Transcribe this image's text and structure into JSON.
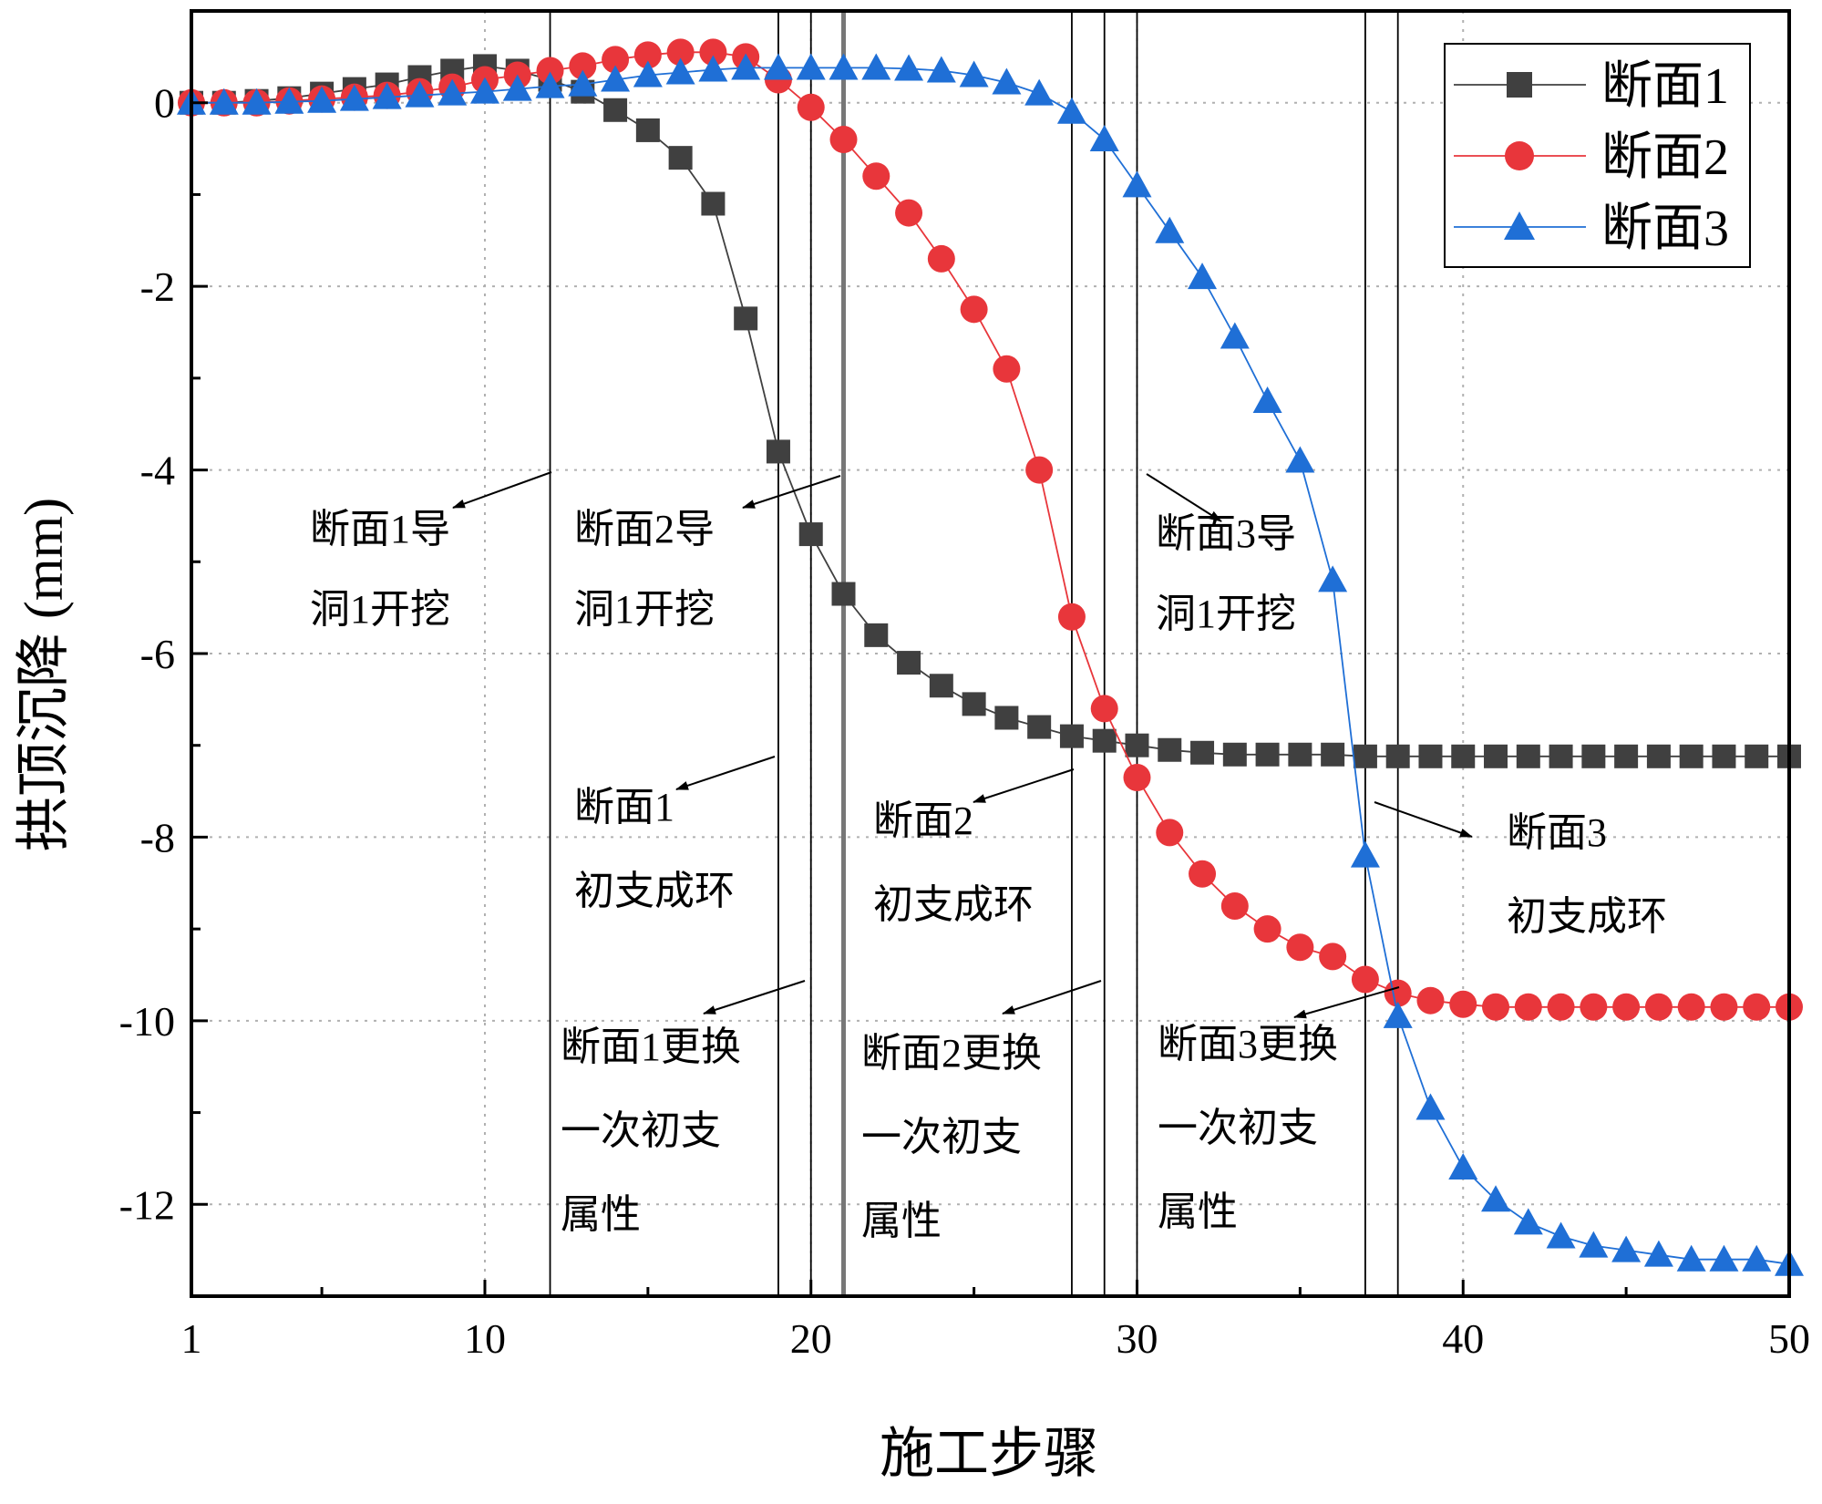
{
  "chart_data": {
    "type": "line",
    "xlabel": "施工步骤",
    "ylabel": "拱顶沉降 (mm)",
    "xlim": [
      1,
      50
    ],
    "ylim": [
      -13,
      1
    ],
    "xticks": [
      1,
      10,
      20,
      30,
      40,
      50
    ],
    "yticks": [
      0,
      -2,
      -4,
      -6,
      -8,
      -10,
      -12
    ],
    "grid": "dotted",
    "legend_position": "top-right",
    "x": [
      1,
      2,
      3,
      4,
      5,
      6,
      7,
      8,
      9,
      10,
      11,
      12,
      13,
      14,
      15,
      16,
      17,
      18,
      19,
      20,
      21,
      22,
      23,
      24,
      25,
      26,
      27,
      28,
      29,
      30,
      31,
      32,
      33,
      34,
      35,
      36,
      37,
      38,
      39,
      40,
      41,
      42,
      43,
      44,
      45,
      46,
      47,
      48,
      49,
      50
    ],
    "series": [
      {
        "name": "断面1",
        "color": "#404040",
        "marker": "square",
        "values": [
          0,
          0,
          0.02,
          0.05,
          0.1,
          0.15,
          0.2,
          0.28,
          0.35,
          0.4,
          0.35,
          0.25,
          0.12,
          -0.08,
          -0.3,
          -0.6,
          -1.1,
          -2.35,
          -3.8,
          -4.7,
          -5.35,
          -5.8,
          -6.1,
          -6.35,
          -6.55,
          -6.7,
          -6.8,
          -6.9,
          -6.95,
          -7.0,
          -7.05,
          -7.08,
          -7.1,
          -7.1,
          -7.1,
          -7.1,
          -7.12,
          -7.12,
          -7.12,
          -7.12,
          -7.12,
          -7.12,
          -7.12,
          -7.12,
          -7.12,
          -7.12,
          -7.12,
          -7.12,
          -7.12,
          -7.12
        ]
      },
      {
        "name": "断面2",
        "color": "#e8363b",
        "marker": "circle",
        "values": [
          0,
          0,
          0,
          0.02,
          0.04,
          0.06,
          0.08,
          0.12,
          0.17,
          0.25,
          0.3,
          0.35,
          0.4,
          0.47,
          0.52,
          0.55,
          0.55,
          0.5,
          0.25,
          -0.05,
          -0.4,
          -0.8,
          -1.2,
          -1.7,
          -2.25,
          -2.9,
          -4.0,
          -5.6,
          -6.6,
          -7.35,
          -7.95,
          -8.4,
          -8.75,
          -9.0,
          -9.2,
          -9.3,
          -9.55,
          -9.7,
          -9.78,
          -9.82,
          -9.85,
          -9.85,
          -9.85,
          -9.85,
          -9.85,
          -9.85,
          -9.85,
          -9.85,
          -9.85,
          -9.85
        ]
      },
      {
        "name": "断面3",
        "color": "#1f6fd6",
        "marker": "triangle",
        "values": [
          0,
          0,
          0,
          0.01,
          0.02,
          0.04,
          0.06,
          0.08,
          0.1,
          0.12,
          0.15,
          0.18,
          0.2,
          0.25,
          0.3,
          0.33,
          0.36,
          0.38,
          0.38,
          0.38,
          0.38,
          0.38,
          0.37,
          0.35,
          0.3,
          0.22,
          0.1,
          -0.1,
          -0.4,
          -0.9,
          -1.4,
          -1.9,
          -2.55,
          -3.25,
          -3.9,
          -5.2,
          -8.2,
          -9.95,
          -10.95,
          -11.6,
          -11.95,
          -12.2,
          -12.35,
          -12.45,
          -12.5,
          -12.55,
          -12.6,
          -12.6,
          -12.6,
          -12.65
        ]
      }
    ],
    "reference_lines_x": [
      12,
      19,
      20,
      21,
      28,
      29,
      30,
      37,
      38
    ],
    "annotations": [
      {
        "id": "s1-tunnel",
        "lines": [
          "断面1导",
          "洞1开挖"
        ],
        "points_to_x": 12
      },
      {
        "id": "s2-tunnel",
        "lines": [
          "断面2导",
          "洞1开挖"
        ],
        "points_to_x": 21
      },
      {
        "id": "s3-tunnel",
        "lines": [
          "断面3导",
          "洞1开挖"
        ],
        "points_to_x": 30
      },
      {
        "id": "s1-ring",
        "lines": [
          "断面1",
          "初支成环"
        ],
        "points_to_x": 19
      },
      {
        "id": "s2-ring",
        "lines": [
          "断面2",
          "初支成环"
        ],
        "points_to_x": 28
      },
      {
        "id": "s3-ring",
        "lines": [
          "断面3",
          "初支成环"
        ],
        "points_to_x": 37
      },
      {
        "id": "s1-replace",
        "lines": [
          "断面1更换",
          "一次初支",
          "属性"
        ],
        "points_to_x": 20
      },
      {
        "id": "s2-replace",
        "lines": [
          "断面2更换",
          "一次初支",
          "属性"
        ],
        "points_to_x": 29
      },
      {
        "id": "s3-replace",
        "lines": [
          "断面3更换",
          "一次初支",
          "属性"
        ],
        "points_to_x": 38
      }
    ]
  }
}
